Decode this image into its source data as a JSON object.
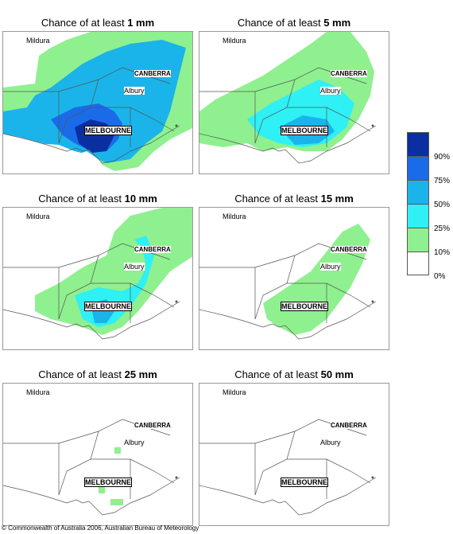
{
  "panels": [
    {
      "prefix": "Chance of at least ",
      "amount": "1 mm"
    },
    {
      "prefix": "Chance of at least ",
      "amount": "5 mm"
    },
    {
      "prefix": "Chance of at least ",
      "amount": "10 mm"
    },
    {
      "prefix": "Chance of at least ",
      "amount": "15 mm"
    },
    {
      "prefix": "Chance of at least ",
      "amount": "25 mm"
    },
    {
      "prefix": "Chance of at least ",
      "amount": "50 mm"
    }
  ],
  "places": {
    "mildura": "Mildura",
    "canberra": "CANBERRA",
    "albury": "Albury",
    "melbourne": "MELBOURNE"
  },
  "legend": {
    "labels": [
      "90%",
      "75%",
      "50%",
      "25%",
      "10%",
      "0%"
    ],
    "colors": [
      "#0a2fa0",
      "#1a6be8",
      "#1ab4ea",
      "#2ef0f5",
      "#8ff08f",
      "#ffffff"
    ]
  },
  "copyright": "© Commonwealth of Australia 2006, Australian Bureau of Meteorology"
}
